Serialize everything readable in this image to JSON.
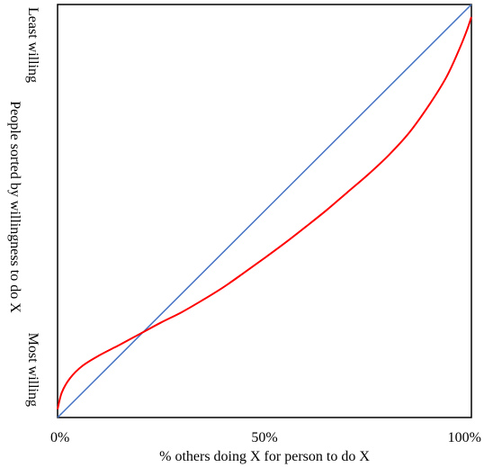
{
  "chart_data": {
    "type": "line",
    "title": "",
    "xlabel": "% others doing X for person to do X",
    "ylabel": "People sorted by willingness to do X",
    "y_top_label": "Least willing",
    "y_bottom_label": "Most willing",
    "xlim": [
      0,
      100
    ],
    "ylim": [
      0,
      100
    ],
    "x_ticks": [
      {
        "value": 0,
        "label": "0%"
      },
      {
        "value": 50,
        "label": "50%"
      },
      {
        "value": 100,
        "label": "100%"
      }
    ],
    "grid": false,
    "legend": "none",
    "series": [
      {
        "color": "#4472c4",
        "x": [
          0,
          100
        ],
        "y": [
          0,
          100
        ]
      },
      {
        "color": "#ff0000",
        "x": [
          0,
          1,
          3,
          6,
          10,
          15,
          20,
          25,
          30,
          35,
          40,
          45,
          50,
          55,
          60,
          65,
          70,
          75,
          80,
          85,
          90,
          94,
          97,
          99,
          100
        ],
        "y": [
          2,
          6,
          9.5,
          12.5,
          15,
          17.6,
          20.3,
          23,
          25.5,
          28.4,
          31.5,
          35,
          38.6,
          42.3,
          46.2,
          50.2,
          54.5,
          58.8,
          63.5,
          69,
          76,
          82.5,
          89,
          94,
          97
        ]
      }
    ]
  }
}
